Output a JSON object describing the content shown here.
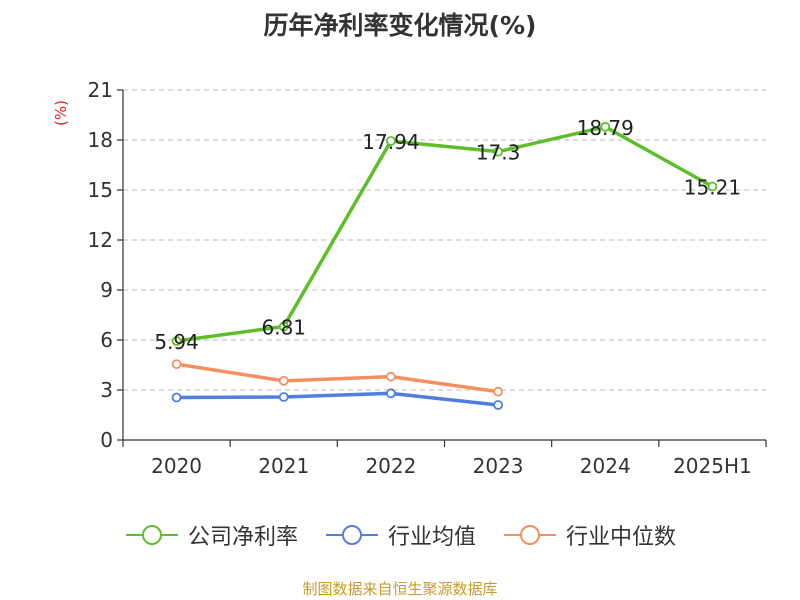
{
  "chart_data": {
    "type": "line",
    "title": "历年净利率变化情况(%)",
    "ylabel": "(%)",
    "xlabel": "",
    "categories": [
      "2020",
      "2021",
      "2022",
      "2023",
      "2024",
      "2025H1"
    ],
    "ylim": [
      0,
      21
    ],
    "yticks": [
      "0",
      "3",
      "6",
      "9",
      "12",
      "15",
      "18",
      "21"
    ],
    "grid": true,
    "legend_position": "bottom",
    "series": [
      {
        "name": "公司净利率",
        "color": "#5cbf2a",
        "values": [
          5.94,
          6.81,
          17.94,
          17.3,
          18.79,
          15.21
        ],
        "labels": [
          "5.94",
          "6.81",
          "17.94",
          "17.3",
          "18.79",
          "15.21"
        ]
      },
      {
        "name": "行业均值",
        "color": "#4e7fdc",
        "values": [
          2.55,
          2.58,
          2.8,
          2.1,
          null,
          null
        ]
      },
      {
        "name": "行业中位数",
        "color": "#f39060",
        "values": [
          4.55,
          3.55,
          3.8,
          2.9,
          null,
          null
        ]
      }
    ]
  },
  "source": "制图数据来自恒生聚源数据库"
}
